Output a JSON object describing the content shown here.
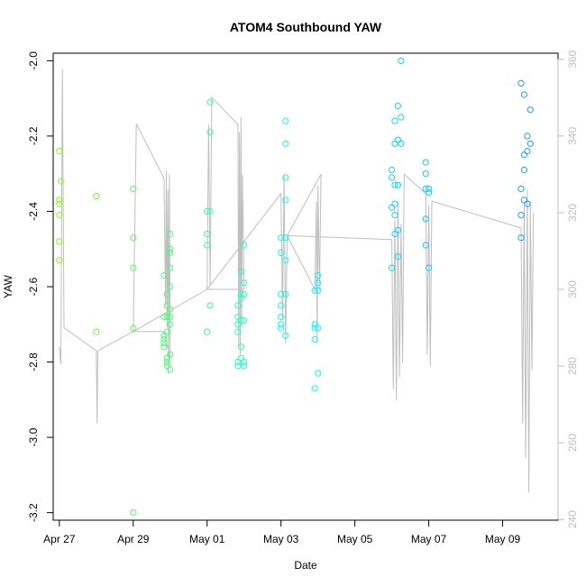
{
  "chart_data": {
    "type": "scatter",
    "title": "ATOM4 Southbound YAW",
    "xlabel": "Date",
    "ylabel": "YAW",
    "x_is_date": true,
    "xlim": [
      "2019-04-26T20:00",
      "2019-05-10T12:00"
    ],
    "ylim": [
      -3.22,
      -1.98
    ],
    "y2lim": [
      239.8,
      361.6
    ],
    "x_tick_labels": [
      "Apr 27",
      "Apr 29",
      "May 01",
      "May 03",
      "May 05",
      "May 07",
      "May 09"
    ],
    "x_ticks": [
      "2019-04-27T00:00",
      "2019-04-29T00:00",
      "2019-05-01T00:00",
      "2019-05-03T00:00",
      "2019-05-05T00:00",
      "2019-05-07T00:00",
      "2019-05-09T00:00"
    ],
    "y_ticks": [
      -3.2,
      -3.0,
      -2.8,
      -2.6,
      -2.4,
      -2.2,
      -2.0
    ],
    "y_tick_labels": [
      "-3.2",
      "-3.0",
      "-2.8",
      "-2.6",
      "-2.4",
      "-2.2",
      "-2.0"
    ],
    "y2_ticks": [
      240,
      260,
      280,
      300,
      320,
      340,
      360
    ],
    "y2_tick_labels": [
      "240",
      "260",
      "280",
      "300",
      "320",
      "340",
      "360"
    ],
    "grid": false,
    "legend": "none",
    "colors": {
      "points": "gradient green (#7fff00) to blue (#1e90ff) by date",
      "line": "#bebebe"
    },
    "points": [
      [
        "2019-04-27T00:00",
        -2.24
      ],
      [
        "2019-04-27T00:00",
        -2.37
      ],
      [
        "2019-04-27T00:00",
        -2.38
      ],
      [
        "2019-04-27T00:00",
        -2.41
      ],
      [
        "2019-04-27T00:00",
        -2.48
      ],
      [
        "2019-04-27T00:00",
        -2.53
      ],
      [
        "2019-04-27T01:00",
        -2.32
      ],
      [
        "2019-04-28T00:00",
        -2.36
      ],
      [
        "2019-04-28T00:00",
        -2.72
      ],
      [
        "2019-04-29T00:00",
        -2.34
      ],
      [
        "2019-04-29T00:00",
        -2.47
      ],
      [
        "2019-04-29T00:00",
        -2.55
      ],
      [
        "2019-04-29T00:00",
        -2.71
      ],
      [
        "2019-04-29T00:00",
        -3.2
      ],
      [
        "2019-04-29T20:00",
        -2.57
      ],
      [
        "2019-04-29T20:00",
        -2.68
      ],
      [
        "2019-04-29T20:00",
        -2.73
      ],
      [
        "2019-04-29T20:00",
        -2.74
      ],
      [
        "2019-04-29T20:00",
        -2.75
      ],
      [
        "2019-04-29T20:00",
        -2.76
      ],
      [
        "2019-04-29T22:00",
        -2.62
      ],
      [
        "2019-04-29T22:00",
        -2.65
      ],
      [
        "2019-04-29T22:00",
        -2.68
      ],
      [
        "2019-04-29T22:00",
        -2.72
      ],
      [
        "2019-04-29T22:00",
        -2.79
      ],
      [
        "2019-04-29T22:00",
        -2.8
      ],
      [
        "2019-04-29T22:00",
        -2.81
      ],
      [
        "2019-04-30T00:00",
        -2.46
      ],
      [
        "2019-04-30T00:00",
        -2.5
      ],
      [
        "2019-04-30T00:00",
        -2.51
      ],
      [
        "2019-04-30T00:00",
        -2.55
      ],
      [
        "2019-04-30T00:00",
        -2.6
      ],
      [
        "2019-04-30T00:00",
        -2.66
      ],
      [
        "2019-04-30T00:00",
        -2.68
      ],
      [
        "2019-04-30T00:00",
        -2.7
      ],
      [
        "2019-04-30T00:00",
        -2.78
      ],
      [
        "2019-04-30T00:00",
        -2.82
      ],
      [
        "2019-05-01T00:00",
        -2.4
      ],
      [
        "2019-05-01T00:00",
        -2.46
      ],
      [
        "2019-05-01T00:00",
        -2.49
      ],
      [
        "2019-05-01T00:00",
        -2.72
      ],
      [
        "2019-05-01T02:00",
        -2.11
      ],
      [
        "2019-05-01T02:00",
        -2.19
      ],
      [
        "2019-05-01T02:00",
        -2.4
      ],
      [
        "2019-05-01T02:00",
        -2.65
      ],
      [
        "2019-05-01T20:00",
        -2.65
      ],
      [
        "2019-05-01T20:00",
        -2.68
      ],
      [
        "2019-05-01T20:00",
        -2.7
      ],
      [
        "2019-05-01T20:00",
        -2.72
      ],
      [
        "2019-05-01T20:00",
        -2.8
      ],
      [
        "2019-05-01T20:00",
        -2.81
      ],
      [
        "2019-05-01T22:00",
        -2.56
      ],
      [
        "2019-05-01T22:00",
        -2.62
      ],
      [
        "2019-05-01T22:00",
        -2.63
      ],
      [
        "2019-05-01T22:00",
        -2.69
      ],
      [
        "2019-05-01T22:00",
        -2.76
      ],
      [
        "2019-05-01T22:00",
        -2.79
      ],
      [
        "2019-05-02T00:00",
        -2.49
      ],
      [
        "2019-05-02T00:00",
        -2.59
      ],
      [
        "2019-05-02T00:00",
        -2.62
      ],
      [
        "2019-05-02T00:00",
        -2.69
      ],
      [
        "2019-05-02T00:00",
        -2.8
      ],
      [
        "2019-05-02T00:00",
        -2.81
      ],
      [
        "2019-05-03T00:00",
        -2.47
      ],
      [
        "2019-05-03T00:00",
        -2.51
      ],
      [
        "2019-05-03T00:00",
        -2.62
      ],
      [
        "2019-05-03T00:00",
        -2.65
      ],
      [
        "2019-05-03T00:00",
        -2.68
      ],
      [
        "2019-05-03T00:00",
        -2.7
      ],
      [
        "2019-05-03T00:00",
        -2.71
      ],
      [
        "2019-05-03T03:00",
        -2.16
      ],
      [
        "2019-05-03T03:00",
        -2.22
      ],
      [
        "2019-05-03T03:00",
        -2.31
      ],
      [
        "2019-05-03T03:00",
        -2.37
      ],
      [
        "2019-05-03T03:00",
        -2.47
      ],
      [
        "2019-05-03T03:00",
        -2.53
      ],
      [
        "2019-05-03T03:00",
        -2.62
      ],
      [
        "2019-05-03T03:00",
        -2.73
      ],
      [
        "2019-05-03T22:00",
        -2.61
      ],
      [
        "2019-05-03T22:00",
        -2.7
      ],
      [
        "2019-05-03T22:00",
        -2.71
      ],
      [
        "2019-05-03T22:00",
        -2.74
      ],
      [
        "2019-05-03T22:00",
        -2.87
      ],
      [
        "2019-05-04T00:00",
        -2.57
      ],
      [
        "2019-05-04T00:00",
        -2.59
      ],
      [
        "2019-05-04T00:00",
        -2.61
      ],
      [
        "2019-05-04T00:00",
        -2.71
      ],
      [
        "2019-05-04T00:00",
        -2.83
      ],
      [
        "2019-05-06T00:00",
        -2.29
      ],
      [
        "2019-05-06T00:00",
        -2.31
      ],
      [
        "2019-05-06T00:00",
        -2.39
      ],
      [
        "2019-05-06T00:00",
        -2.55
      ],
      [
        "2019-05-06T02:00",
        -2.16
      ],
      [
        "2019-05-06T02:00",
        -2.22
      ],
      [
        "2019-05-06T02:00",
        -2.33
      ],
      [
        "2019-05-06T02:00",
        -2.38
      ],
      [
        "2019-05-06T02:00",
        -2.41
      ],
      [
        "2019-05-06T02:00",
        -2.46
      ],
      [
        "2019-05-06T04:00",
        -2.12
      ],
      [
        "2019-05-06T04:00",
        -2.21
      ],
      [
        "2019-05-06T04:00",
        -2.33
      ],
      [
        "2019-05-06T04:00",
        -2.45
      ],
      [
        "2019-05-06T04:00",
        -2.52
      ],
      [
        "2019-05-06T06:00",
        -2.0
      ],
      [
        "2019-05-06T06:00",
        -2.15
      ],
      [
        "2019-05-06T06:00",
        -2.22
      ],
      [
        "2019-05-06T22:00",
        -2.27
      ],
      [
        "2019-05-06T22:00",
        -2.3
      ],
      [
        "2019-05-06T22:00",
        -2.34
      ],
      [
        "2019-05-06T22:00",
        -2.42
      ],
      [
        "2019-05-06T22:00",
        -2.49
      ],
      [
        "2019-05-07T00:00",
        -2.34
      ],
      [
        "2019-05-07T00:00",
        -2.35
      ],
      [
        "2019-05-07T00:00",
        -2.55
      ],
      [
        "2019-05-09T12:00",
        -2.06
      ],
      [
        "2019-05-09T12:00",
        -2.34
      ],
      [
        "2019-05-09T12:00",
        -2.41
      ],
      [
        "2019-05-09T12:00",
        -2.47
      ],
      [
        "2019-05-09T14:00",
        -2.09
      ],
      [
        "2019-05-09T14:00",
        -2.25
      ],
      [
        "2019-05-09T14:00",
        -2.29
      ],
      [
        "2019-05-09T14:00",
        -2.37
      ],
      [
        "2019-05-09T16:00",
        -2.2
      ],
      [
        "2019-05-09T16:00",
        -2.24
      ],
      [
        "2019-05-09T16:00",
        -2.38
      ],
      [
        "2019-05-09T18:00",
        -2.13
      ],
      [
        "2019-05-09T18:00",
        -2.22
      ]
    ],
    "line_y2": [
      [
        "2019-04-27T00:00",
        285.0
      ],
      [
        "2019-04-27T01:00",
        280.5
      ],
      [
        "2019-04-27T02:00",
        357.4
      ],
      [
        "2019-04-27T03:00",
        290.0
      ],
      [
        "2019-04-28T00:00",
        284.0
      ],
      [
        "2019-04-28T00:30",
        265.0
      ],
      [
        "2019-04-28T01:00",
        284.0
      ],
      [
        "2019-04-29T00:00",
        289.0
      ],
      [
        "2019-04-29T02:00",
        343.2
      ],
      [
        "2019-04-29T20:00",
        329.0
      ],
      [
        "2019-04-29T21:00",
        296.0
      ],
      [
        "2019-04-29T21:30",
        331.0
      ],
      [
        "2019-04-29T22:00",
        290.0
      ],
      [
        "2019-04-29T22:30",
        326.0
      ],
      [
        "2019-04-29T23:00",
        278.0
      ],
      [
        "2019-04-29T23:30",
        330.0
      ],
      [
        "2019-04-30T00:00",
        282.0
      ],
      [
        "2019-04-29T20:00",
        289.0
      ],
      [
        "2019-04-29T00:00",
        289.0
      ],
      [
        "2019-05-01T00:00",
        300.0
      ],
      [
        "2019-05-01T01:00",
        343.0
      ],
      [
        "2019-05-01T02:00",
        301.0
      ],
      [
        "2019-05-01T03:00",
        350.1
      ],
      [
        "2019-05-01T20:00",
        343.0
      ],
      [
        "2019-05-01T20:30",
        285.0
      ],
      [
        "2019-05-01T21:00",
        341.0
      ],
      [
        "2019-05-01T21:30",
        283.0
      ],
      [
        "2019-05-01T22:00",
        345.0
      ],
      [
        "2019-05-01T22:30",
        290.0
      ],
      [
        "2019-05-01T23:00",
        330.0
      ],
      [
        "2019-05-02T00:00",
        300.0
      ],
      [
        "2019-05-01T00:00",
        300.0
      ],
      [
        "2019-05-03T00:00",
        325.0
      ],
      [
        "2019-05-03T01:00",
        292.0
      ],
      [
        "2019-05-03T02:00",
        330.0
      ],
      [
        "2019-05-03T03:00",
        286.0
      ],
      [
        "2019-05-03T04:00",
        314.0
      ],
      [
        "2019-05-03T22:00",
        300.0
      ],
      [
        "2019-05-03T23:00",
        323.0
      ],
      [
        "2019-05-03T23:30",
        286.0
      ],
      [
        "2019-05-04T00:00",
        327.0
      ],
      [
        "2019-05-04T01:00",
        300.0
      ],
      [
        "2019-05-04T02:00",
        330.0
      ],
      [
        "2019-05-03T04:00",
        314.0
      ],
      [
        "2019-05-06T00:00",
        313.0
      ],
      [
        "2019-05-06T01:00",
        274.0
      ],
      [
        "2019-05-06T02:00",
        318.0
      ],
      [
        "2019-05-06T03:00",
        271.0
      ],
      [
        "2019-05-06T04:00",
        323.0
      ],
      [
        "2019-05-06T05:00",
        277.0
      ],
      [
        "2019-05-06T06:00",
        317.0
      ],
      [
        "2019-05-06T07:00",
        281.0
      ],
      [
        "2019-05-06T08:00",
        330.0
      ],
      [
        "2019-05-06T22:00",
        325.0
      ],
      [
        "2019-05-06T23:00",
        283.0
      ],
      [
        "2019-05-07T00:00",
        322.0
      ],
      [
        "2019-05-07T01:00",
        280.0
      ],
      [
        "2019-05-07T02:00",
        323.0
      ],
      [
        "2019-05-09T12:00",
        316.0
      ],
      [
        "2019-05-09T13:00",
        265.0
      ],
      [
        "2019-05-09T14:00",
        322.0
      ],
      [
        "2019-05-09T15:00",
        256.0
      ],
      [
        "2019-05-09T16:00",
        326.0
      ],
      [
        "2019-05-09T17:00",
        247.0
      ],
      [
        "2019-05-09T18:00",
        323.0
      ],
      [
        "2019-05-09T19:00",
        279.0
      ],
      [
        "2019-05-09T20:00",
        320.0
      ]
    ]
  }
}
